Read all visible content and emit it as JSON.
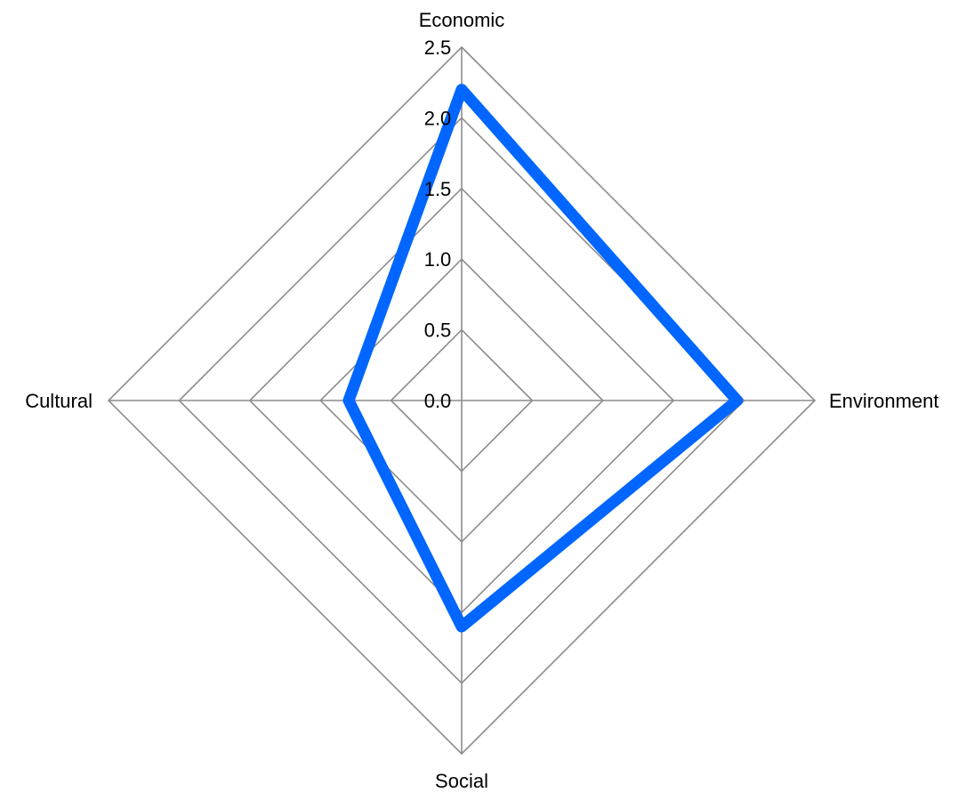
{
  "chart_data": {
    "type": "radar",
    "title": "",
    "axes": [
      "Economic",
      "Environment",
      "Social",
      "Cultural"
    ],
    "ticks": [
      "0.0",
      "0.5",
      "1.0",
      "1.5",
      "2.0",
      "2.5"
    ],
    "range": [
      0,
      2.5
    ],
    "grid": true,
    "series": [
      {
        "values": [
          2.2,
          1.95,
          1.6,
          0.8
        ]
      }
    ],
    "colors": {
      "series": "#0066ff",
      "grid": "#8c8c8c"
    }
  }
}
